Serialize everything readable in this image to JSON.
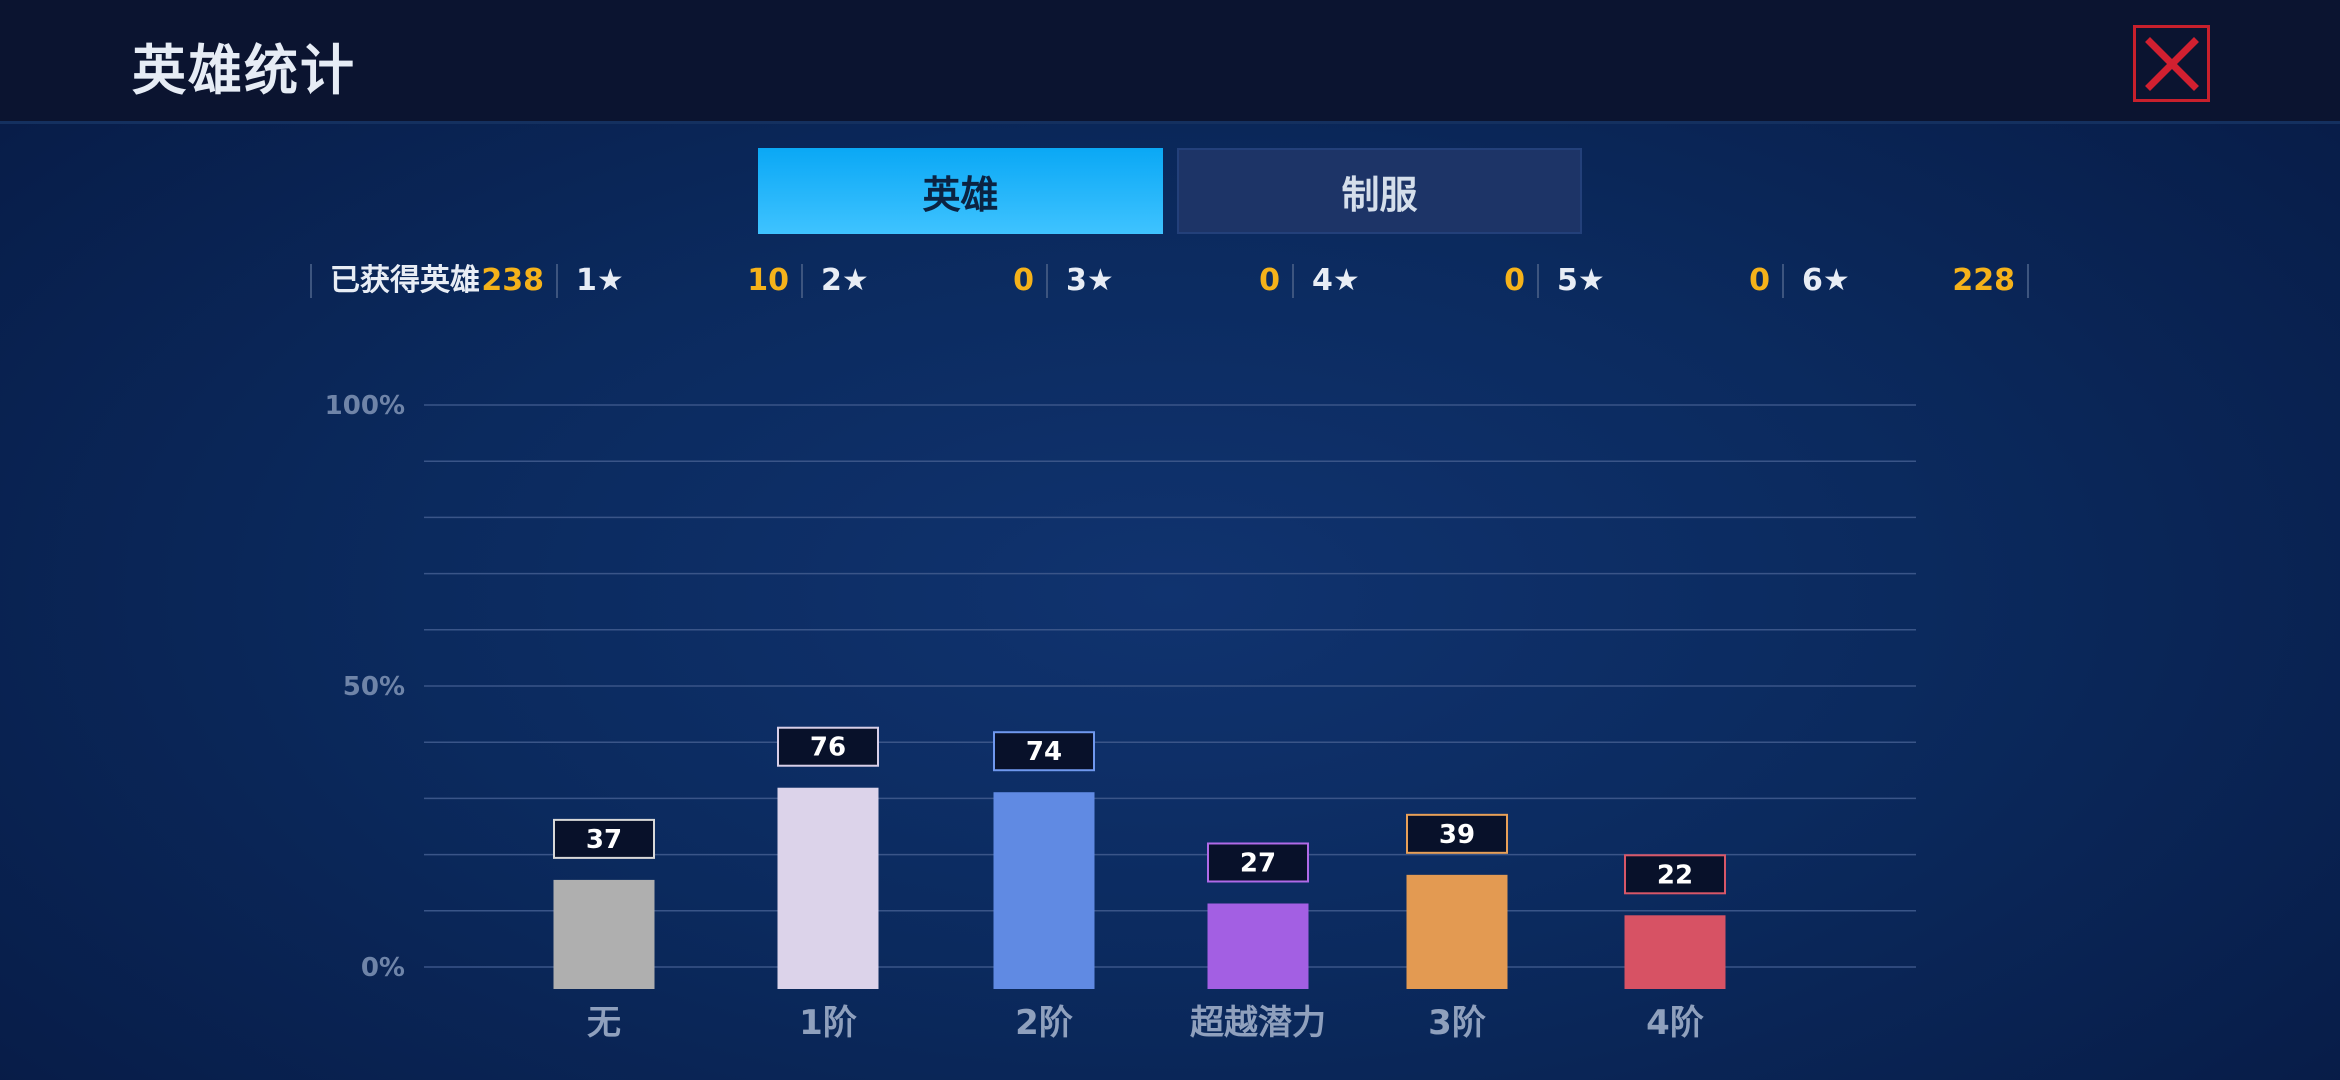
{
  "header": {
    "title": "英雄统计"
  },
  "tabs": [
    {
      "label": "英雄",
      "active": true
    },
    {
      "label": "制服",
      "active": false
    }
  ],
  "stats": [
    {
      "label": "已获得英雄",
      "value": "238"
    },
    {
      "label": "1★",
      "value": "10"
    },
    {
      "label": "2★",
      "value": "0"
    },
    {
      "label": "3★",
      "value": "0"
    },
    {
      "label": "4★",
      "value": "0"
    },
    {
      "label": "5★",
      "value": "0"
    },
    {
      "label": "6★",
      "value": "228"
    }
  ],
  "colors": {
    "accent_tab": "#1ab4f8",
    "value_yellow": "#f5b21a",
    "close_red": "#d22030"
  },
  "icons": {
    "close": "close-icon"
  },
  "chart_data": {
    "type": "bar",
    "categories": [
      "无",
      "1阶",
      "2阶",
      "超越潜力",
      "3阶",
      "4阶"
    ],
    "values": [
      37,
      76,
      74,
      27,
      39,
      22
    ],
    "percent_of_total": [
      15.5,
      31.9,
      31.1,
      11.3,
      16.4,
      9.2
    ],
    "colors": [
      "#afafaf",
      "#dcd3ea",
      "#608ae3",
      "#a35fe3",
      "#e39a52",
      "#d75264"
    ],
    "label_border_colors": [
      "#d8d8d8",
      "#d8cfe8",
      "#6f98ee",
      "#b06ae8",
      "#e8a058",
      "#d85768"
    ],
    "y_ticks": [
      "100%",
      "50%",
      "0%"
    ],
    "ylim": [
      0,
      100
    ],
    "grid": true,
    "title": "",
    "xlabel": "",
    "ylabel": ""
  }
}
